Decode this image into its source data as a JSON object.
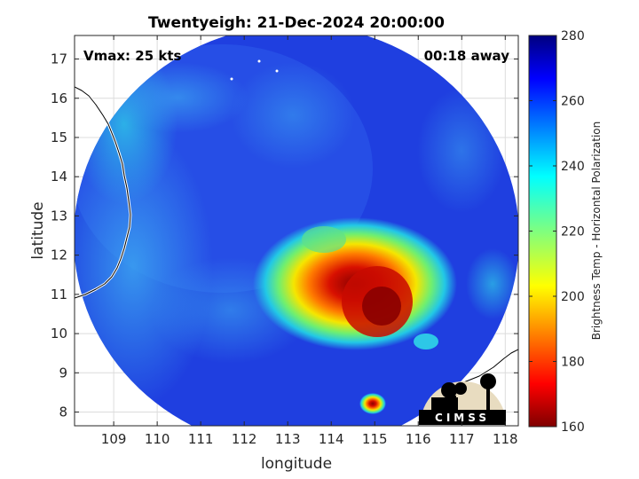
{
  "title": "Twentyeigh: 21-Dec-2024 20:00:00",
  "xlabel": "longitude",
  "ylabel": "latitude",
  "vmax_label": "Vmax: 25 kts",
  "time_away_label": "00:18 away",
  "x_ticks": [
    "109",
    "110",
    "111",
    "112",
    "113",
    "114",
    "115",
    "116",
    "117",
    "118"
  ],
  "y_ticks": [
    "8",
    "9",
    "10",
    "11",
    "12",
    "13",
    "14",
    "15",
    "16",
    "17"
  ],
  "colorbar": {
    "label": "Brightness Temp - Horizontal Polarization",
    "ticks": [
      "160",
      "180",
      "200",
      "220",
      "240",
      "260",
      "280"
    ],
    "min": 160,
    "max": 280,
    "colormap": "jet"
  },
  "logo": {
    "text": "CIMSS"
  },
  "colors": {
    "background_swath": "#1f3fe0",
    "coastline": "#ffffff",
    "grid": "#dcdcdc"
  }
}
